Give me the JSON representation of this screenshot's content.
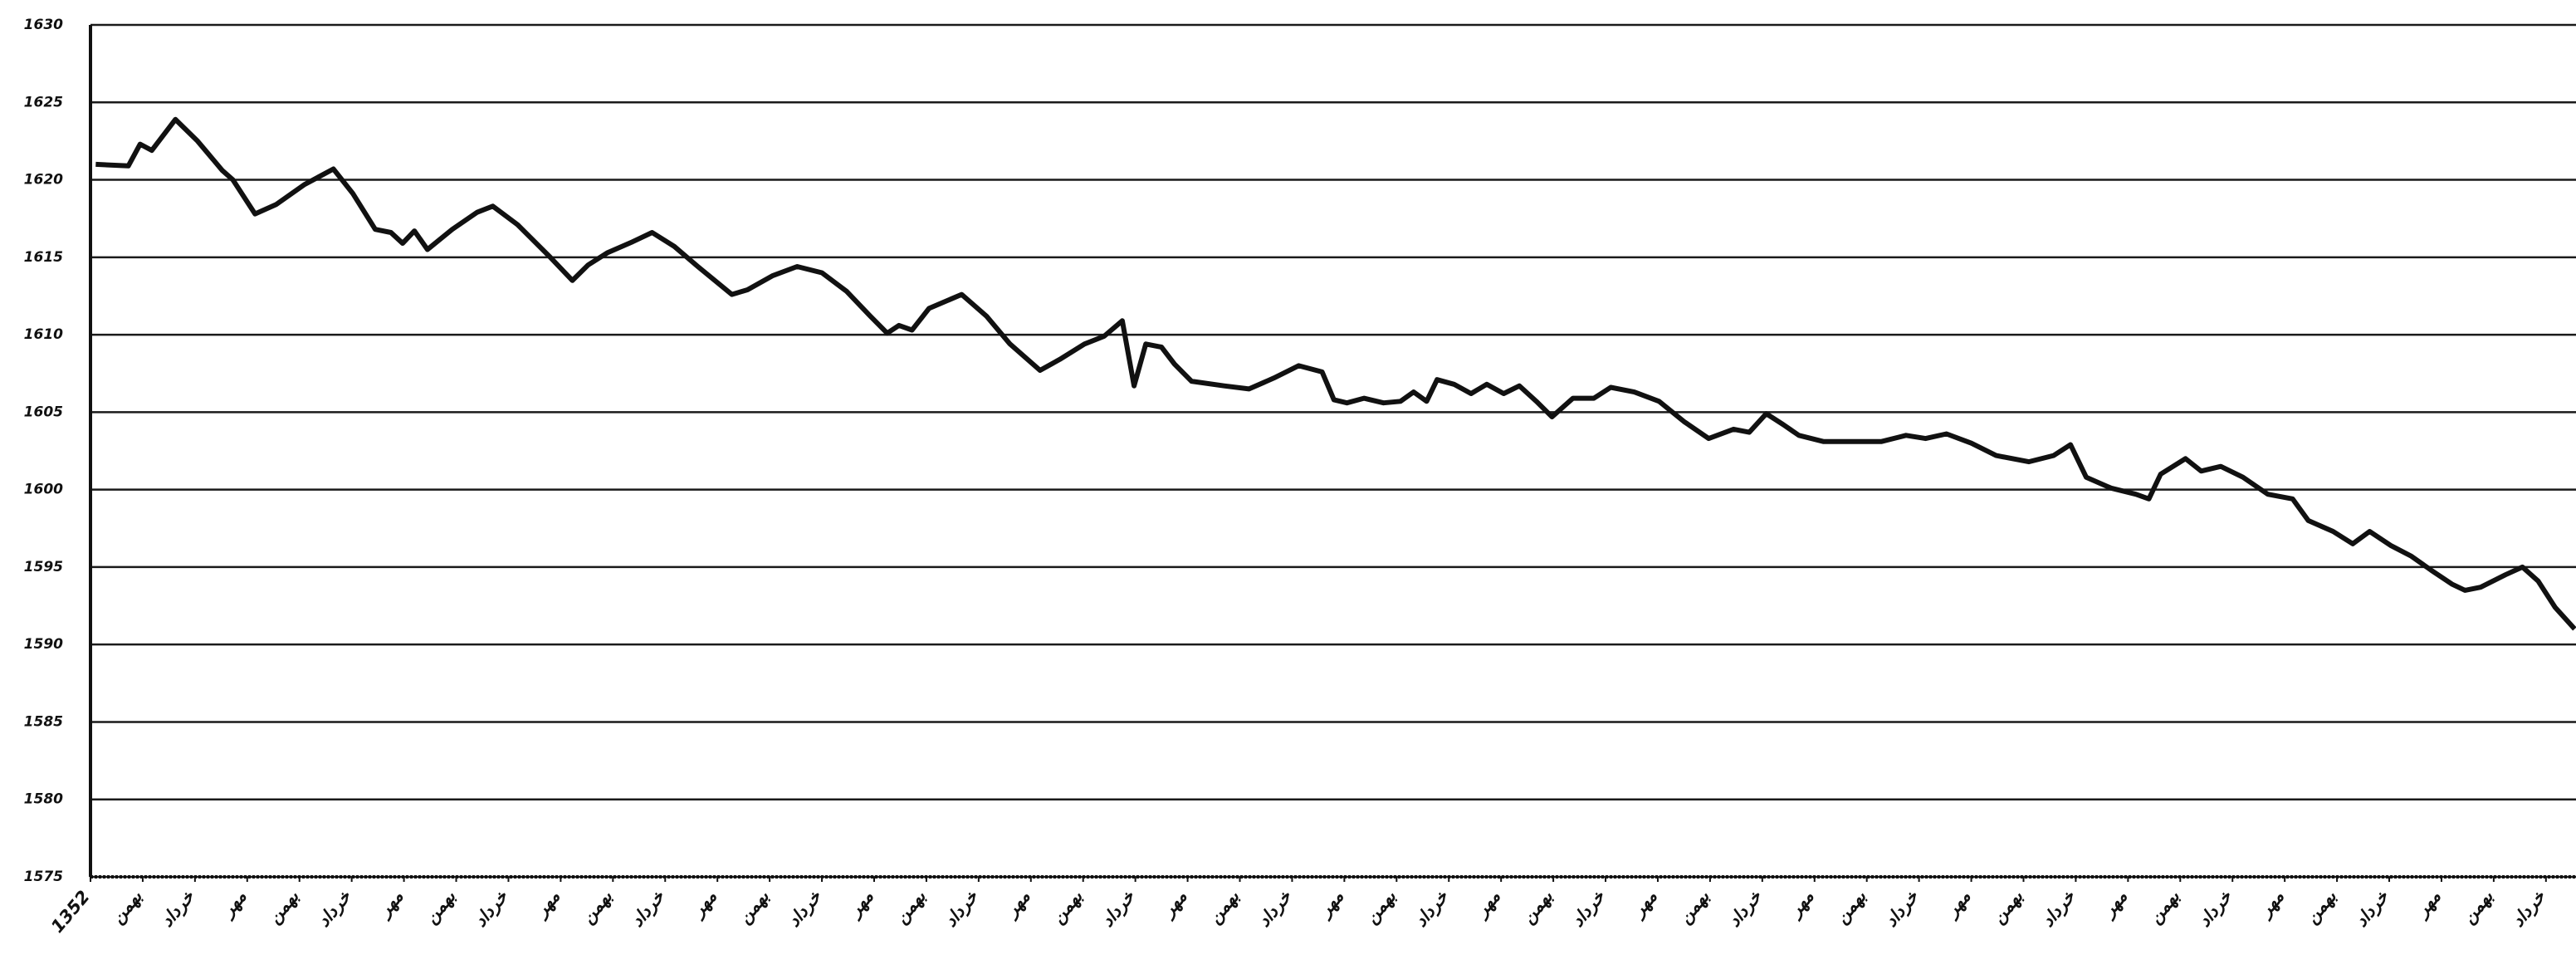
{
  "chart_data": {
    "type": "line",
    "ylim": [
      1575,
      1630
    ],
    "yticks": [
      1575,
      1580,
      1585,
      1590,
      1595,
      1600,
      1605,
      1610,
      1615,
      1620,
      1625,
      1630
    ],
    "xlim": [
      0,
      190.3
    ],
    "xticks": [
      {
        "value": 0,
        "label": "1352"
      },
      {
        "value": 4,
        "label": "بهمن"
      },
      {
        "value": 8,
        "label": "خرداد"
      },
      {
        "value": 12,
        "label": "مهر"
      },
      {
        "value": 16,
        "label": "بهمن"
      },
      {
        "value": 20,
        "label": "خرداد"
      },
      {
        "value": 24,
        "label": "مهر"
      },
      {
        "value": 28,
        "label": "بهمن"
      },
      {
        "value": 32,
        "label": "خرداد"
      },
      {
        "value": 36,
        "label": "مهر"
      },
      {
        "value": 40,
        "label": "بهمن"
      },
      {
        "value": 44,
        "label": "خرداد"
      },
      {
        "value": 48,
        "label": "مهر"
      },
      {
        "value": 52,
        "label": "بهمن"
      },
      {
        "value": 56,
        "label": "خرداد"
      },
      {
        "value": 60,
        "label": "مهر"
      },
      {
        "value": 64,
        "label": "بهمن"
      },
      {
        "value": 68,
        "label": "خرداد"
      },
      {
        "value": 72,
        "label": "مهر"
      },
      {
        "value": 76,
        "label": "بهمن"
      },
      {
        "value": 80,
        "label": "خرداد"
      },
      {
        "value": 84,
        "label": "مهر"
      },
      {
        "value": 88,
        "label": "بهمن"
      },
      {
        "value": 92,
        "label": "خرداد"
      },
      {
        "value": 96,
        "label": "مهر"
      },
      {
        "value": 100,
        "label": "بهمن"
      },
      {
        "value": 104,
        "label": "خرداد"
      },
      {
        "value": 108,
        "label": "مهر"
      },
      {
        "value": 112,
        "label": "بهمن"
      },
      {
        "value": 116,
        "label": "خرداد"
      },
      {
        "value": 120,
        "label": "مهر"
      },
      {
        "value": 124,
        "label": "بهمن"
      },
      {
        "value": 128,
        "label": "خرداد"
      },
      {
        "value": 132,
        "label": "مهر"
      },
      {
        "value": 136,
        "label": "بهمن"
      },
      {
        "value": 140,
        "label": "خرداد"
      },
      {
        "value": 144,
        "label": "مهر"
      },
      {
        "value": 148,
        "label": "بهمن"
      },
      {
        "value": 152,
        "label": "خرداد"
      },
      {
        "value": 156,
        "label": "مهر"
      },
      {
        "value": 160,
        "label": "بهمن"
      },
      {
        "value": 164,
        "label": "خرداد"
      },
      {
        "value": 168,
        "label": "مهر"
      },
      {
        "value": 172,
        "label": "بهمن"
      },
      {
        "value": 176,
        "label": "خرداد"
      },
      {
        "value": 180,
        "label": "مهر"
      },
      {
        "value": 184,
        "label": "بهمن"
      },
      {
        "value": 188,
        "label": "خرداد"
      }
    ],
    "grid": true,
    "color": "#111111",
    "x": [
      0.4,
      2.9,
      3.8,
      4.7,
      6.5,
      8.2,
      10.1,
      10.9,
      12.6,
      14.2,
      16.4,
      18.6,
      20.1,
      21.8,
      23.0,
      23.9,
      24.8,
      25.8,
      27.7,
      29.6,
      30.8,
      32.7,
      35.2,
      36.9,
      38.1,
      39.6,
      41.5,
      43.0,
      44.7,
      46.5,
      49.1,
      50.3,
      52.2,
      54.1,
      56.0,
      57.9,
      59.7,
      61.0,
      61.9,
      62.9,
      64.2,
      66.7,
      68.6,
      70.4,
      72.7,
      74.2,
      76.1,
      77.6,
      79.0,
      79.9,
      80.8,
      82.0,
      83.0,
      84.3,
      86.8,
      88.7,
      90.6,
      92.5,
      94.3,
      95.2,
      96.2,
      97.5,
      99.0,
      100.3,
      101.3,
      102.3,
      103.1,
      104.4,
      105.7,
      106.9,
      108.2,
      109.4,
      110.7,
      111.9,
      113.5,
      115.1,
      116.4,
      118.2,
      120.1,
      122.0,
      123.9,
      125.8,
      127.0,
      128.3,
      129.6,
      130.8,
      132.7,
      134.6,
      137.1,
      139.0,
      140.5,
      142.1,
      144.0,
      145.9,
      148.4,
      150.3,
      151.6,
      152.8,
      154.7,
      156.6,
      157.6,
      158.5,
      160.4,
      161.6,
      163.1,
      164.8,
      166.7,
      168.6,
      169.8,
      171.7,
      173.2,
      174.5,
      176.1,
      177.7,
      179.2,
      180.8,
      181.8,
      183.0,
      184.9,
      186.2,
      187.4,
      188.7,
      190.2
    ],
    "values": [
      1621.0,
      1620.9,
      1622.3,
      1621.9,
      1623.9,
      1622.5,
      1620.6,
      1620.0,
      1617.8,
      1618.4,
      1619.7,
      1620.7,
      1619.1,
      1616.8,
      1616.6,
      1615.9,
      1616.7,
      1615.5,
      1616.8,
      1617.9,
      1618.3,
      1617.1,
      1615.0,
      1613.5,
      1614.5,
      1615.3,
      1616.0,
      1616.6,
      1615.7,
      1614.4,
      1612.6,
      1612.9,
      1613.8,
      1614.4,
      1614.0,
      1612.8,
      1611.2,
      1610.1,
      1610.6,
      1610.3,
      1611.7,
      1612.6,
      1611.2,
      1609.4,
      1607.7,
      1608.4,
      1609.4,
      1609.9,
      1610.9,
      1606.7,
      1609.4,
      1609.2,
      1608.1,
      1607.0,
      1606.7,
      1606.5,
      1607.2,
      1608.0,
      1607.6,
      1605.8,
      1605.6,
      1605.9,
      1605.6,
      1605.7,
      1606.3,
      1605.7,
      1607.1,
      1606.8,
      1606.2,
      1606.8,
      1606.2,
      1606.7,
      1605.7,
      1604.7,
      1605.9,
      1605.9,
      1606.6,
      1606.3,
      1605.7,
      1604.4,
      1603.3,
      1603.9,
      1603.7,
      1604.9,
      1604.2,
      1603.5,
      1603.1,
      1603.1,
      1603.1,
      1603.5,
      1603.3,
      1603.6,
      1603.0,
      1602.2,
      1601.8,
      1602.2,
      1602.9,
      1600.8,
      1600.1,
      1599.7,
      1599.4,
      1601.0,
      1602.0,
      1601.2,
      1601.5,
      1600.8,
      1599.7,
      1599.4,
      1598.0,
      1597.3,
      1596.5,
      1597.3,
      1596.4,
      1595.7,
      1594.8,
      1593.9,
      1593.5,
      1593.7,
      1594.5,
      1595.0,
      1594.1,
      1592.4,
      1591.0
    ]
  }
}
